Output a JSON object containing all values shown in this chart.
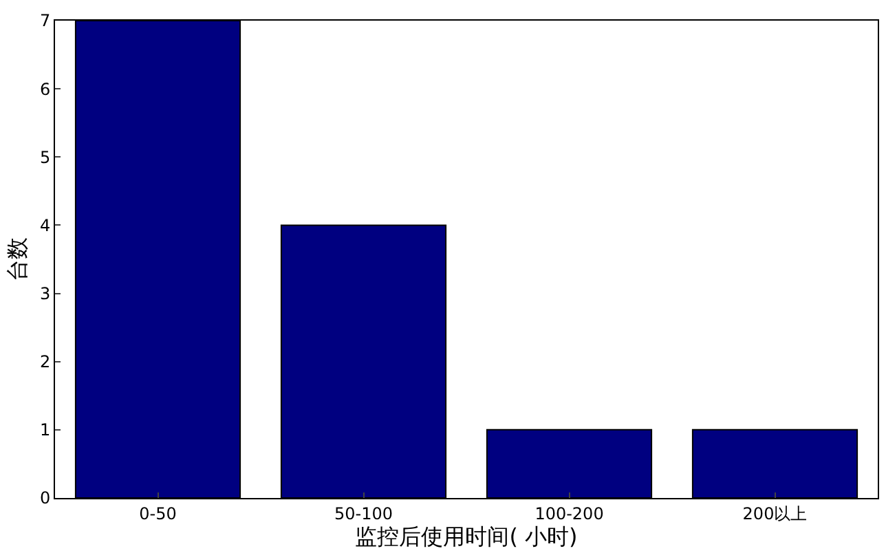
{
  "chart_data": {
    "type": "bar",
    "xlabel": "监控后使用时间( 小时)",
    "ylabel": "台数",
    "categories": [
      "0-50",
      "50-100",
      "100-200",
      "200以上"
    ],
    "values": [
      7,
      4,
      1,
      1
    ],
    "color": "#000080",
    "ylim": [
      0,
      7
    ],
    "yticks": [
      0,
      1,
      2,
      3,
      4,
      5,
      6,
      7
    ]
  }
}
